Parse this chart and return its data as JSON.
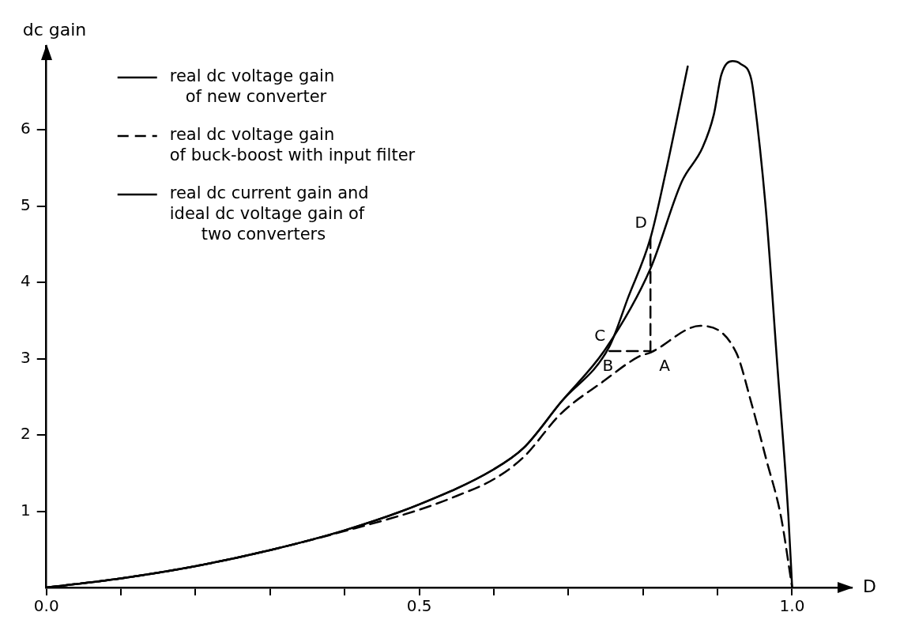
{
  "chart_data": {
    "type": "line",
    "xlabel": "D",
    "ylabel": "dc gain",
    "xlim": [
      0,
      1.08
    ],
    "ylim": [
      0,
      7.1
    ],
    "xticks": [
      {
        "value": 0,
        "label": "0.0"
      },
      {
        "value": 0.1,
        "label": null
      },
      {
        "value": 0.2,
        "label": null
      },
      {
        "value": 0.3,
        "label": null
      },
      {
        "value": 0.4,
        "label": null
      },
      {
        "value": 0.5,
        "label": "0.5"
      },
      {
        "value": 0.6,
        "label": null
      },
      {
        "value": 0.7,
        "label": null
      },
      {
        "value": 0.8,
        "label": null
      },
      {
        "value": 0.9,
        "label": null
      },
      {
        "value": 1.0,
        "label": "1.0"
      }
    ],
    "yticks": [
      1,
      2,
      3,
      4,
      5,
      6
    ],
    "grid": false,
    "legend": "top left",
    "marker": "none",
    "series": [
      {
        "name": "real dc voltage gain\n   of new converter",
        "color": "#000000",
        "line_style": "solid",
        "x": [
          0,
          0.1,
          0.2,
          0.3,
          0.4,
          0.5,
          0.6,
          0.64,
          0.69,
          0.75,
          0.81,
          0.852,
          0.88,
          0.895,
          0.905,
          0.92,
          0.93,
          0.945,
          0.949,
          0.965,
          0.98,
          0.995,
          1.0
        ],
        "values": [
          0,
          0.12,
          0.28,
          0.49,
          0.75,
          1.09,
          1.55,
          1.83,
          2.43,
          3.13,
          4.18,
          5.32,
          5.77,
          6.2,
          6.72,
          6.9,
          6.87,
          6.67,
          6.42,
          4.93,
          2.93,
          0.93,
          0
        ]
      },
      {
        "name": "real dc voltage gain\nof buck-boost with input filter",
        "color": "#000000",
        "line_style": "dashed",
        "x": [
          0,
          0.1,
          0.2,
          0.3,
          0.4,
          0.5,
          0.55,
          0.6,
          0.64,
          0.69,
          0.745,
          0.795,
          0.81,
          0.877,
          0.925,
          0.945,
          0.965,
          0.985,
          1.0
        ],
        "values": [
          0,
          0.12,
          0.28,
          0.49,
          0.74,
          1.02,
          1.2,
          1.42,
          1.71,
          2.28,
          2.69,
          3.03,
          3.08,
          3.43,
          3.08,
          2.43,
          1.69,
          0.93,
          0
        ]
      },
      {
        "name": "real dc current gain and\nideal dc voltage gain of\n      two converters",
        "color": "#000000",
        "line_style": "solid",
        "x": [
          0,
          0.1,
          0.2,
          0.3,
          0.4,
          0.5,
          0.6,
          0.64,
          0.69,
          0.755,
          0.78,
          0.81,
          0.83,
          0.86
        ],
        "values": [
          0,
          0.12,
          0.28,
          0.49,
          0.75,
          1.09,
          1.55,
          1.83,
          2.43,
          3.16,
          3.8,
          4.58,
          5.42,
          6.83
        ]
      },
      {
        "color": "#000000",
        "line_style": "dashed",
        "x": [
          0.755,
          0.81
        ],
        "values": [
          3.1,
          3.1
        ]
      },
      {
        "color": "#000000",
        "line_style": "dashed",
        "x": [
          0.81,
          0.81
        ],
        "values": [
          3.08,
          4.58
        ]
      }
    ],
    "annotations": [
      "C",
      "B",
      "A",
      "D"
    ]
  }
}
